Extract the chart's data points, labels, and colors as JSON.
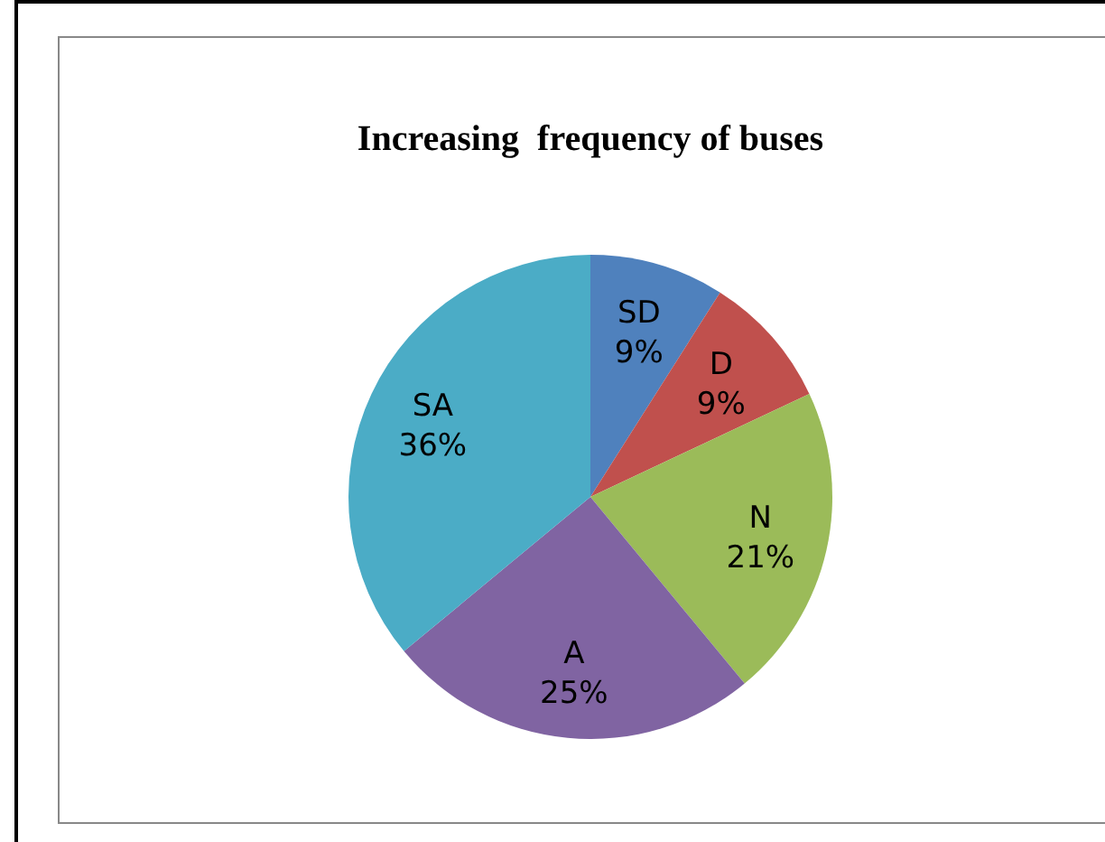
{
  "chart_data": {
    "type": "pie",
    "title": "Increasing  frequency of buses",
    "categories": [
      "SD",
      "D",
      "N",
      "A",
      "SA"
    ],
    "values": [
      9,
      9,
      21,
      25,
      36
    ],
    "value_labels": [
      "9%",
      "9%",
      "21%",
      "25%",
      "36%"
    ],
    "colors": [
      "#4f81bd",
      "#c0504d",
      "#9bbb59",
      "#8064a2",
      "#4bacc6"
    ],
    "legend": false
  }
}
